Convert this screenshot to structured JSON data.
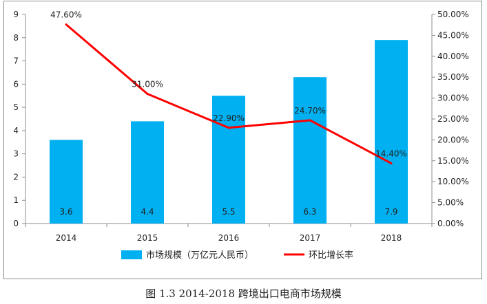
{
  "caption": "图 1.3 2014-2018 跨境出口电商市场规模",
  "colors": {
    "bar": "#00B0F0",
    "line": "#FF0000",
    "axis": "#8c8c8c"
  },
  "chart_data": {
    "type": "bar+line",
    "categories": [
      "2014",
      "2015",
      "2016",
      "2017",
      "2018"
    ],
    "series": [
      {
        "name": "市场规模（万亿元人民币）",
        "type": "bar",
        "axis": "left",
        "values": [
          3.6,
          4.4,
          5.5,
          6.3,
          7.9
        ],
        "labels": [
          "3.6",
          "4.4",
          "5.5",
          "6.3",
          "7.9"
        ]
      },
      {
        "name": "环比增长率",
        "type": "line",
        "axis": "right",
        "values": [
          47.6,
          31.0,
          22.9,
          24.7,
          14.4
        ],
        "labels": [
          "47.60%",
          "31.00%",
          "22.90%",
          "24.70%",
          "14.40%"
        ]
      }
    ],
    "left_axis": {
      "min": 0,
      "max": 9,
      "ticks": [
        "0",
        "1",
        "2",
        "3",
        "4",
        "5",
        "6",
        "7",
        "8",
        "9"
      ]
    },
    "right_axis": {
      "min": 0,
      "max": 50,
      "ticks": [
        "0.00%",
        "5.00%",
        "10.00%",
        "15.00%",
        "20.00%",
        "25.00%",
        "30.00%",
        "35.00%",
        "40.00%",
        "45.00%",
        "50.00%"
      ]
    },
    "legend": {
      "position": "bottom",
      "entries": [
        "市场规模（万亿元人民币）",
        "环比增长率"
      ]
    },
    "grid": false
  }
}
